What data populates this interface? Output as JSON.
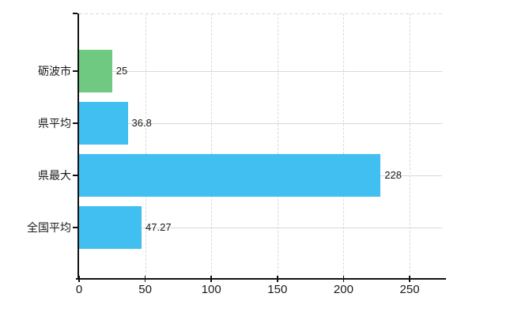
{
  "chart_data": {
    "type": "bar",
    "orientation": "horizontal",
    "title": "",
    "categories": [
      "砺波市",
      "県平均",
      "県最大",
      "全国平均"
    ],
    "values": [
      25,
      36.8,
      228,
      47.27
    ],
    "value_labels": [
      "25",
      "36.8",
      "228",
      "47.27"
    ],
    "bar_colors": [
      "#70c980",
      "#40bff0",
      "#40bff0",
      "#40bff0"
    ],
    "x_axis": {
      "tick_values": [
        0,
        50,
        100,
        150,
        200,
        250
      ],
      "tick_labels": [
        "0",
        "50",
        "100",
        "150",
        "200",
        "250"
      ],
      "range": [
        0,
        274.5
      ]
    },
    "grid": {
      "vertical": "dashed",
      "horizontal": "solid",
      "top_border": "dashed"
    },
    "legend": null,
    "colors": {
      "background": "#ffffff",
      "axis": "#111111",
      "gridline": "#d9d9d9",
      "text": "#1a1a1a"
    }
  }
}
